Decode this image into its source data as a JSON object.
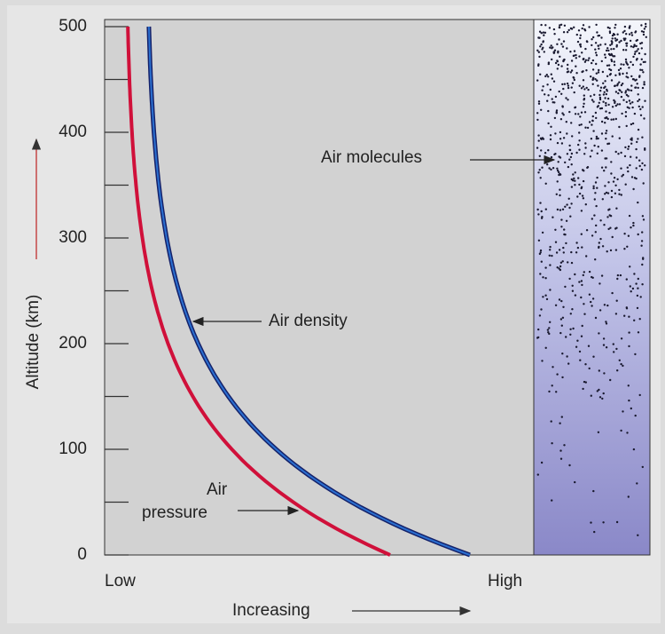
{
  "y_axis": {
    "title": "Altitude (km)",
    "ticks": [
      0,
      100,
      200,
      300,
      400,
      500
    ]
  },
  "x_axis": {
    "low": "Low",
    "high": "High",
    "title": "Increasing"
  },
  "labels": {
    "air_molecules": "Air molecules",
    "air_density": "Air density",
    "air_pressure_1": "Air",
    "air_pressure_2": "pressure"
  }
}
